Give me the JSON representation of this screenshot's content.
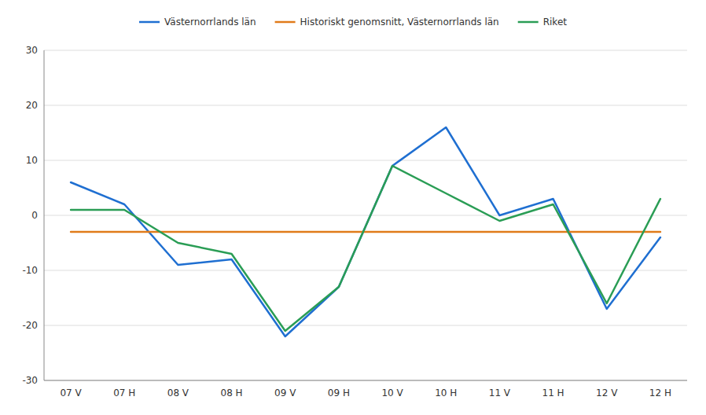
{
  "chart_data": {
    "type": "line",
    "categories": [
      "07 V",
      "07 H",
      "08 V",
      "08 H",
      "09 V",
      "09 H",
      "10 V",
      "10 H",
      "11 V",
      "11 H",
      "12 V",
      "12 H"
    ],
    "series": [
      {
        "name": "Västernorrlands län",
        "color": "#1f6fd1",
        "values": [
          6,
          2,
          -9,
          -8,
          -22,
          -13,
          9,
          16,
          0,
          3,
          -17,
          -4
        ]
      },
      {
        "name": "Historiskt genomsnitt, Västernorrlands län",
        "color": "#e07b1a",
        "values": [
          -3,
          -3,
          -3,
          -3,
          -3,
          -3,
          -3,
          -3,
          -3,
          -3,
          -3,
          -3
        ]
      },
      {
        "name": "Riket",
        "color": "#2a9d55",
        "values": [
          1,
          1,
          -5,
          -7,
          -21,
          -13,
          9,
          4,
          -1,
          2,
          -16,
          3
        ]
      }
    ],
    "ylim": [
      -30,
      30
    ],
    "yticks": [
      -30,
      -20,
      -10,
      0,
      10,
      20,
      30
    ],
    "grid": true,
    "legend": "top"
  }
}
